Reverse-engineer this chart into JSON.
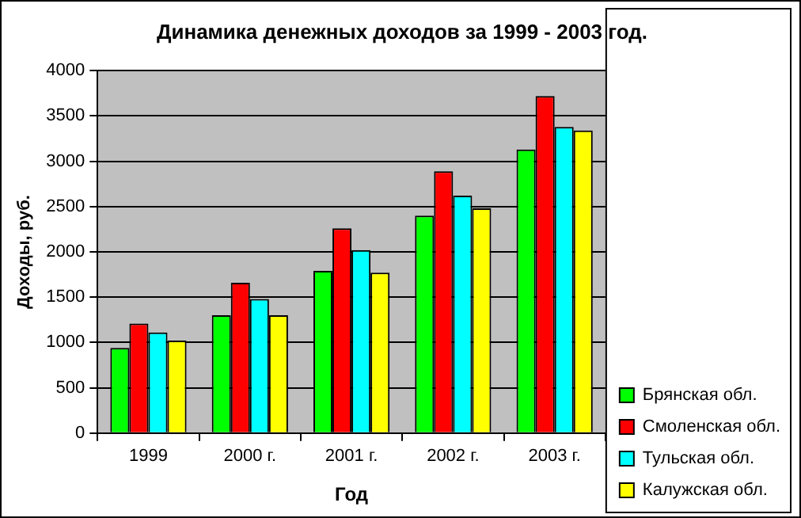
{
  "chart_data": {
    "type": "bar",
    "title": "Динамика денежных доходов за 1999 - 2003 год.",
    "xlabel": "Год",
    "ylabel": "Доходы, руб.",
    "categories": [
      "1999",
      "2000 г.",
      "2001 г.",
      "2002 г.",
      "2003 г."
    ],
    "series": [
      {
        "name": "Брянская обл.",
        "color": "#00ff00",
        "values": [
          940,
          1300,
          1790,
          2400,
          3130
        ]
      },
      {
        "name": "Смоленская обл.",
        "color": "#ff0000",
        "values": [
          1210,
          1660,
          2260,
          2890,
          3720
        ]
      },
      {
        "name": "Тульская обл.",
        "color": "#00ffff",
        "values": [
          1110,
          1480,
          2020,
          2620,
          3380
        ]
      },
      {
        "name": "Калужская обл.",
        "color": "#ffff00",
        "values": [
          1020,
          1300,
          1770,
          2480,
          3340
        ]
      }
    ],
    "ylim": [
      0,
      4000
    ],
    "yticks": [
      0,
      500,
      1000,
      1500,
      2000,
      2500,
      3000,
      3500,
      4000
    ],
    "grid": "y",
    "legend": "bottom right"
  }
}
